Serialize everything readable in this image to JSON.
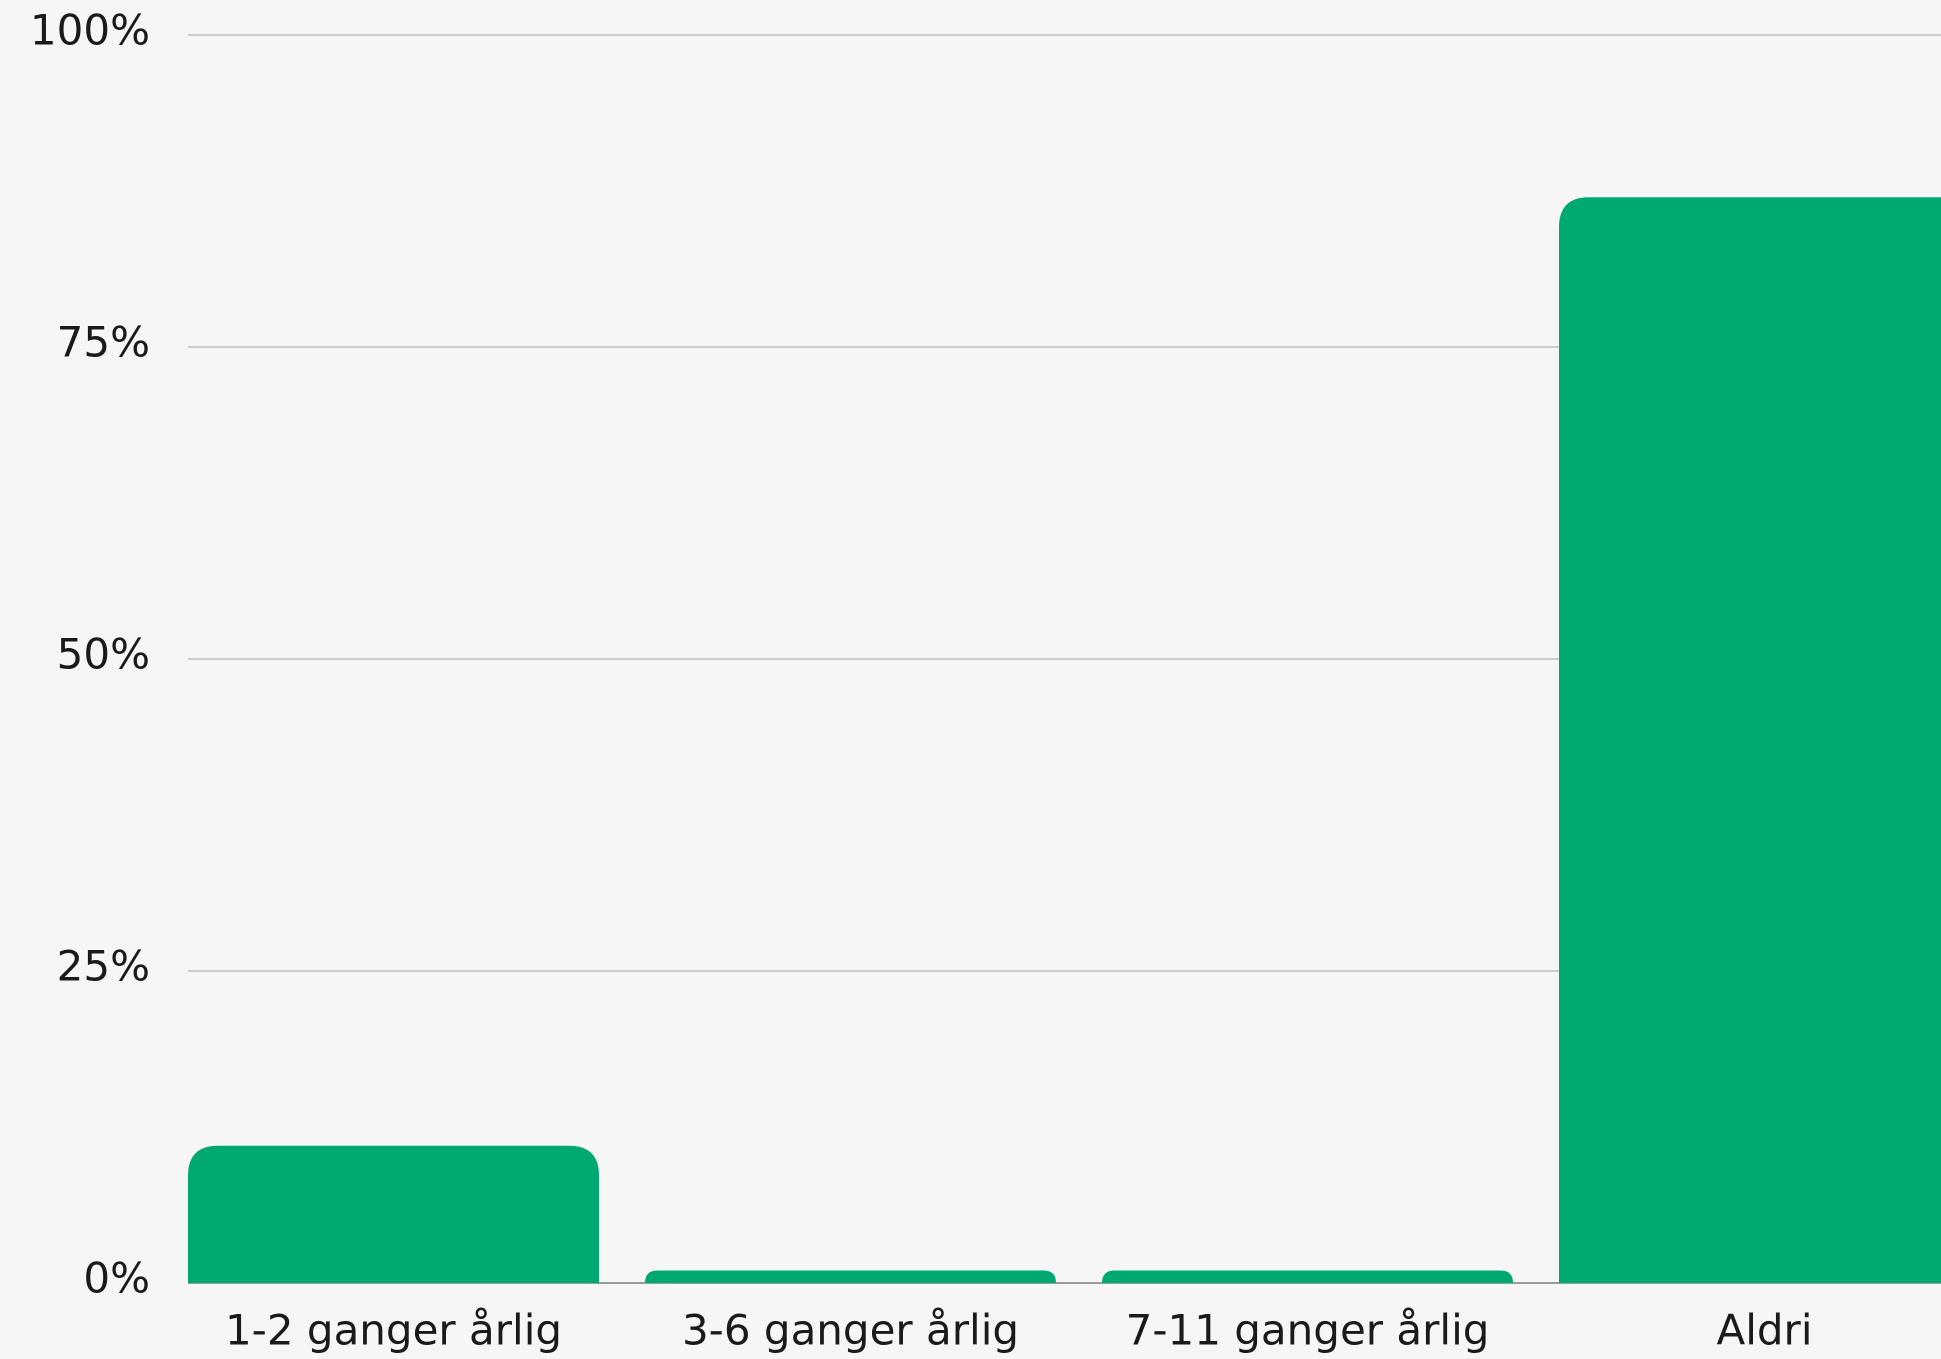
{
  "chart_data": {
    "type": "bar",
    "categories": [
      "1-2 ganger årlig",
      "3-6 ganger årlig",
      "7-11 ganger årlig",
      "Aldri"
    ],
    "values": [
      11,
      1,
      1,
      87
    ],
    "color": "#00a972",
    "ylim": [
      0,
      100
    ],
    "yticks": [
      {
        "value": 0,
        "label": "0%"
      },
      {
        "value": 25,
        "label": "25%"
      },
      {
        "value": 50,
        "label": "50%"
      },
      {
        "value": 75,
        "label": "75%"
      },
      {
        "value": 100,
        "label": "100%"
      }
    ],
    "grid": true
  }
}
